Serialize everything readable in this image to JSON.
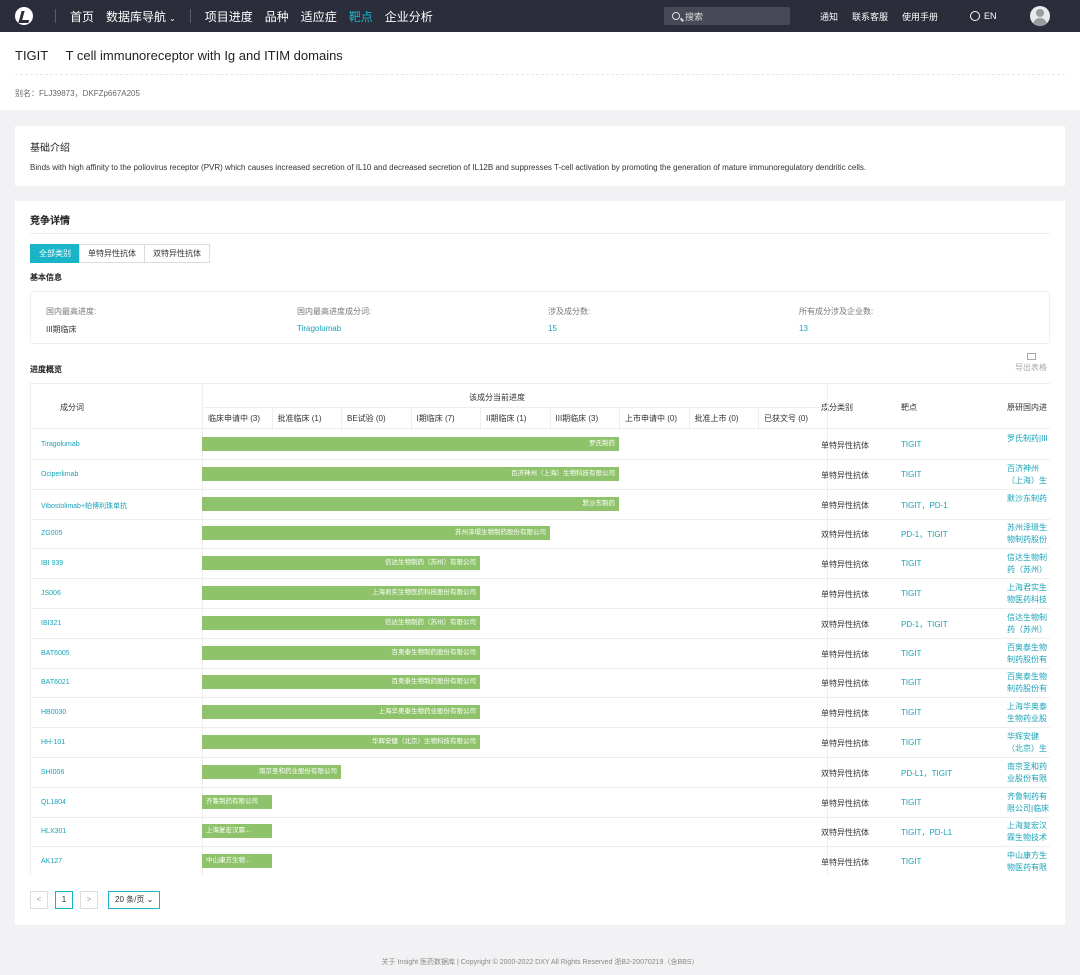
{
  "nav": {
    "items": [
      "首页",
      "数据库导航",
      "项目进度",
      "品种",
      "适应症",
      "靶点",
      "企业分析"
    ],
    "active": "靶点",
    "search_placeholder": "搜索",
    "notify": "通知",
    "support": "联系客服",
    "manual": "使用手册",
    "lang": "EN"
  },
  "header": {
    "gene": "TIGIT",
    "full_name": "T cell immunoreceptor with Ig and ITIM domains",
    "alias": "别名：FLJ39873，DKFZp667A205"
  },
  "intro": {
    "title": "基础介绍",
    "text": "Binds with high affinity to the poliovirus receptor (PVR) which causes increased secretion of IL10 and decreased secretion of IL12B and suppresses T-cell activation by promoting the generation of mature immunoregulatory dendritic cells."
  },
  "competition": {
    "title": "竞争详情",
    "tabs": [
      "全部类别",
      "单特异性抗体",
      "双特异性抗体"
    ],
    "basic_title": "基本信息",
    "basic": [
      {
        "label": "国内最高进度:",
        "value": "III期临床"
      },
      {
        "label": "国内最高进度成分词:",
        "value": "Tiragolumab"
      },
      {
        "label": "涉及成分数:",
        "value": "15"
      },
      {
        "label": "所有成分涉及企业数:",
        "value": "13"
      }
    ],
    "progress_title": "进度概览",
    "export_label": "导出表格",
    "table": {
      "col_name": "成分词",
      "col_progress": "该成分当前进度",
      "stages": [
        "临床申请中 (3)",
        "批准临床 (1)",
        "BE试验 (0)",
        "I期临床 (7)",
        "II期临床 (1)",
        "III期临床 (3)",
        "上市申请中 (0)",
        "批准上市 (0)",
        "已获文号 (0)"
      ],
      "col_type": "成分类别",
      "col_target": "靶点",
      "col_origin": "原研国内进"
    },
    "rows": [
      {
        "name": "Tiragolumab",
        "stage": 6,
        "company": "罗氏制药",
        "type": "单特异性抗体",
        "target": "TIGIT",
        "origin": "罗氏制药|III"
      },
      {
        "name": "Ociperlimab",
        "stage": 6,
        "company": "百济神州（上海）生物科技有限公司",
        "type": "单特异性抗体",
        "target": "TIGIT",
        "origin": "百济神州（上海）生物科技有限公司"
      },
      {
        "name": "Vibostolimab+帕博利珠单抗",
        "stage": 6,
        "company": "默沙东制药",
        "type": "单特异性抗体",
        "target": "TIGIT，PD-1",
        "origin": "默沙东制药"
      },
      {
        "name": "ZG005",
        "stage": 5,
        "company": "苏州泽璟生物制药股份有限公司",
        "type": "双特异性抗体",
        "target": "PD-1，TIGIT",
        "origin": "苏州泽璟生物制药股份有限公司|II"
      },
      {
        "name": "IBI 939",
        "stage": 4,
        "company": "信达生物制药（苏州）有限公司",
        "type": "单特异性抗体",
        "target": "TIGIT",
        "origin": "信达生物制药（苏州）有限公司"
      },
      {
        "name": "JS006",
        "stage": 4,
        "company": "上海君实生物医药科技股份有限公司",
        "type": "单特异性抗体",
        "target": "TIGIT",
        "origin": "上海君实生物医药科技股份有限公司"
      },
      {
        "name": "IBI321",
        "stage": 4,
        "company": "信达生物制药（苏州）有限公司",
        "type": "双特异性抗体",
        "target": "PD-1，TIGIT",
        "origin": "信达生物制药（苏州）有限公司|I"
      },
      {
        "name": "BAT6005",
        "stage": 4,
        "company": "百奥泰生物制药股份有限公司",
        "type": "单特异性抗体",
        "target": "TIGIT",
        "origin": "百奥泰生物制药股份有限公司|I期临"
      },
      {
        "name": "BAT6021",
        "stage": 4,
        "company": "百奥泰生物制药股份有限公司",
        "type": "单特异性抗体",
        "target": "TIGIT",
        "origin": "百奥泰生物制药股份有限公司|I期临"
      },
      {
        "name": "HB0030",
        "stage": 4,
        "company": "上海华奥泰生物药业股份有限公司",
        "type": "单特异性抗体",
        "target": "TIGIT",
        "origin": "上海华奥泰生物药业股份有限公司"
      },
      {
        "name": "HH-101",
        "stage": 4,
        "company": "华辉安健（北京）生物科技有限公司",
        "type": "单特异性抗体",
        "target": "TIGIT",
        "origin": "华辉安健（北京）生物科技有限公司"
      },
      {
        "name": "SHI006",
        "stage": 2,
        "company": "南京圣和药业股份有限公司",
        "type": "双特异性抗体",
        "target": "PD-L1，TIGIT",
        "origin": "南京圣和药业股份有限公司|批准临"
      },
      {
        "name": "QL1804",
        "stage": 1,
        "company": "齐鲁制药有限公司",
        "type": "单特异性抗体",
        "target": "TIGIT",
        "origin": "齐鲁制药有限公司|临床申请中"
      },
      {
        "name": "HLX301",
        "stage": 1,
        "company": "上海复宏汉霖...",
        "type": "双特异性抗体",
        "target": "TIGIT，PD-L1",
        "origin": "上海复宏汉霖生物技术股份有限公司"
      },
      {
        "name": "AK127",
        "stage": 1,
        "company": "中山康方生物...",
        "type": "单特异性抗体",
        "target": "TIGIT",
        "origin": "中山康方生物医药有限公司|临床申"
      }
    ],
    "pager": {
      "prev": "<",
      "page": "1",
      "next": ">",
      "size": "20 条/页"
    }
  },
  "footer": "关于 Insight 医药数据库  |  Copyright © 2000-2022 DXY All Rights Reserved  浙B2-20070219（含BBS）"
}
